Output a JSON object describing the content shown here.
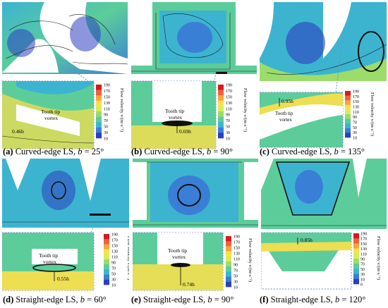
{
  "figure": {
    "panels": [
      {
        "id": "a",
        "cap_id": "(a)",
        "cap_text": "Curved-edge LS, ",
        "var": "b",
        "angle": " = 25°",
        "tip_label": "Tooth tip\nvortex",
        "tip_l1": "Tooth tip",
        "tip_l2": "vortex",
        "measure": "0.46b"
      },
      {
        "id": "b",
        "cap_id": "(b)",
        "cap_text": "Curved-edge LS, ",
        "var": "b",
        "angle": " = 90°",
        "tip_l1": "Tooth tip",
        "tip_l2": "vortex",
        "measure": "0.69h"
      },
      {
        "id": "c",
        "cap_id": "(c)",
        "cap_text": "Curved-edge LS, ",
        "var": "b",
        "angle": " = 135°",
        "tip_l1": "Tooth tip",
        "tip_l2": "vortex",
        "measure": "0.95h"
      },
      {
        "id": "d",
        "cap_id": "(d)",
        "cap_text": "Straight-edge LS, ",
        "var": "b",
        "angle": " = 60°",
        "tip_l1": "Tooth tip",
        "tip_l2": "vortex",
        "measure": "0.55h"
      },
      {
        "id": "e",
        "cap_id": "(e)",
        "cap_text": "Straight-edge LS, ",
        "var": "b",
        "angle": " = 90°",
        "tip_l1": "Tooth tip",
        "tip_l2": "vortex",
        "measure": "0.74h"
      },
      {
        "id": "f",
        "cap_id": "(f)",
        "cap_text": "Straight-edge LS, ",
        "var": "b",
        "angle": " = 120°",
        "tip_l1": "",
        "tip_l2": "",
        "measure": "0.85h"
      }
    ],
    "colorbar": {
      "title": "Flow velocity v/(m·s⁻¹)",
      "ticks": [
        "190",
        "170",
        "150",
        "130",
        "110",
        "90",
        "70",
        "50",
        "30",
        "10"
      ],
      "ticks_f": [
        "190",
        "170",
        "150",
        "130",
        "110",
        "90",
        "70",
        "50",
        "30",
        "10",
        "0"
      ],
      "colors": [
        "#d7191c",
        "#f0623b",
        "#f9a43e",
        "#fde04a",
        "#d6ee5a",
        "#9bdc6b",
        "#5ccd9a",
        "#3cb4d0",
        "#3a7fd6",
        "#2b3fbf"
      ]
    }
  }
}
